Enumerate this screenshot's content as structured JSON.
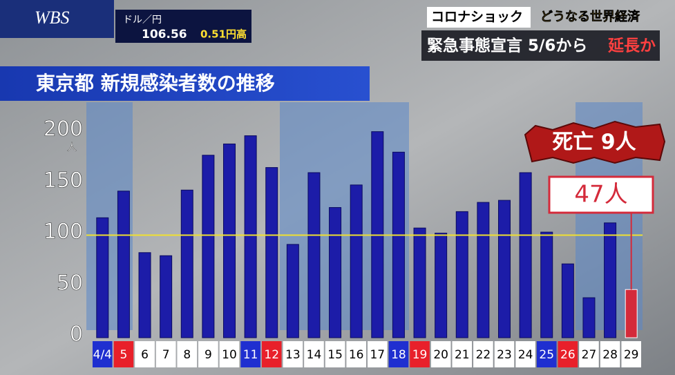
{
  "logo": "WBS",
  "ticker": {
    "label": "ドル／円",
    "rate": "106.56",
    "change": "0.51円高"
  },
  "headline": {
    "topic": "コロナショック",
    "subtopic": "どうなる世界経済",
    "main": "緊急事態宣言 5/6から",
    "accent": "延長か"
  },
  "chart_data": {
    "type": "bar",
    "title": "東京都 新規感染者数の推移",
    "y_unit": "人",
    "categories": [
      "4/4",
      "5",
      "6",
      "7",
      "8",
      "9",
      "10",
      "11",
      "12",
      "13",
      "14",
      "15",
      "16",
      "17",
      "18",
      "19",
      "20",
      "21",
      "22",
      "23",
      "24",
      "25",
      "26",
      "27",
      "28",
      "29"
    ],
    "values": [
      117,
      143,
      83,
      80,
      144,
      178,
      189,
      197,
      166,
      91,
      161,
      127,
      149,
      201,
      181,
      107,
      102,
      123,
      132,
      134,
      161,
      103,
      72,
      39,
      112,
      47
    ],
    "colors": [
      "#1c1ca8",
      "#1c1ca8",
      "#1c1ca8",
      "#1c1ca8",
      "#1c1ca8",
      "#1c1ca8",
      "#1c1ca8",
      "#1c1ca8",
      "#1c1ca8",
      "#1c1ca8",
      "#1c1ca8",
      "#1c1ca8",
      "#1c1ca8",
      "#1c1ca8",
      "#1c1ca8",
      "#1c1ca8",
      "#1c1ca8",
      "#1c1ca8",
      "#1c1ca8",
      "#1c1ca8",
      "#1c1ca8",
      "#1c1ca8",
      "#1c1ca8",
      "#1c1ca8",
      "#1c1ca8",
      "#d42a3a"
    ],
    "label_colors": [
      "#1f2fd0",
      "#e8202a",
      "#ffffff",
      "#ffffff",
      "#ffffff",
      "#ffffff",
      "#ffffff",
      "#1f2fd0",
      "#e8202a",
      "#ffffff",
      "#ffffff",
      "#ffffff",
      "#ffffff",
      "#ffffff",
      "#1f2fd0",
      "#e8202a",
      "#ffffff",
      "#ffffff",
      "#ffffff",
      "#ffffff",
      "#ffffff",
      "#1f2fd0",
      "#e8202a",
      "#ffffff",
      "#ffffff",
      "#ffffff"
    ],
    "ylim": [
      0,
      225
    ],
    "yticks": [
      0,
      50,
      100,
      150,
      200
    ],
    "reference_line": 100,
    "reference_color": "#f0e030",
    "callout": "47人",
    "deaths": "死亡 9人"
  }
}
